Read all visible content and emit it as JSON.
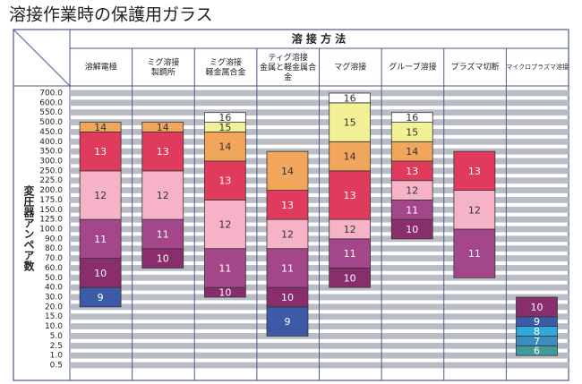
{
  "chart_data": {
    "type": "stacked-range",
    "title": "溶接作業時の保護用ガラス",
    "group_header": "溶 接 方 法",
    "ylabel": "変圧器アンペア数",
    "yticks": [
      {
        "value": 700,
        "label": "700.0"
      },
      {
        "value": 600,
        "label": "600.0"
      },
      {
        "value": 550,
        "label": "550.0"
      },
      {
        "value": 500,
        "label": "500.0"
      },
      {
        "value": 450,
        "label": "450.0"
      },
      {
        "value": 400,
        "label": "400.0"
      },
      {
        "value": 350,
        "label": "350.0"
      },
      {
        "value": 300,
        "label": "300.0"
      },
      {
        "value": 250,
        "label": "250.0"
      },
      {
        "value": 225,
        "label": "225.0"
      },
      {
        "value": 200,
        "label": "200.0"
      },
      {
        "value": 175,
        "label": "175.0"
      },
      {
        "value": 150,
        "label": "150.0"
      },
      {
        "value": 125,
        "label": "125.0"
      },
      {
        "value": 100,
        "label": "100.0"
      },
      {
        "value": 90,
        "label": "90.0"
      },
      {
        "value": 80,
        "label": "80.0"
      },
      {
        "value": 70,
        "label": "70.0"
      },
      {
        "value": 60,
        "label": "60.0"
      },
      {
        "value": 50,
        "label": "50.0"
      },
      {
        "value": 40,
        "label": "40.0"
      },
      {
        "value": 30,
        "label": "30.0"
      },
      {
        "value": 20,
        "label": "20.0"
      },
      {
        "value": 15,
        "label": "15.0"
      },
      {
        "value": 10,
        "label": "10.0"
      },
      {
        "value": 5,
        "label": "5.0"
      },
      {
        "value": 2.5,
        "label": "2.5"
      },
      {
        "value": 1,
        "label": "1.0"
      },
      {
        "value": 0.5,
        "label": "0.5"
      }
    ],
    "grid": true,
    "categories": [
      "溶解電極",
      "ミグ溶接\n製鋼所",
      "ミグ溶接\n軽金属合金",
      "ティグ溶接\n金属と軽金属合\n金",
      "マグ溶接",
      "グルーブ溶接",
      "プラズマ切断",
      "マイクロプラズマ溶接"
    ],
    "columns": [
      {
        "segments": [
          {
            "shade": 9,
            "from": 20,
            "to": 40,
            "color": "#3d5aa6"
          },
          {
            "shade": 10,
            "from": 40,
            "to": 70,
            "color": "#8a2d6d"
          },
          {
            "shade": 11,
            "from": 70,
            "to": 125,
            "color": "#a3478a"
          },
          {
            "shade": 12,
            "from": 125,
            "to": 250,
            "color": "#f6b3c8"
          },
          {
            "shade": 13,
            "from": 250,
            "to": 450,
            "color": "#e03a5c"
          },
          {
            "shade": 14,
            "from": 450,
            "to": 500,
            "color": "#f2a65c"
          }
        ]
      },
      {
        "segments": [
          {
            "shade": 10,
            "from": 60,
            "to": 80,
            "color": "#8a2d6d"
          },
          {
            "shade": 11,
            "from": 80,
            "to": 125,
            "color": "#a3478a"
          },
          {
            "shade": 12,
            "from": 125,
            "to": 250,
            "color": "#f6b3c8"
          },
          {
            "shade": 13,
            "from": 250,
            "to": 450,
            "color": "#e03a5c"
          },
          {
            "shade": 14,
            "from": 450,
            "to": 500,
            "color": "#f2a65c"
          }
        ]
      },
      {
        "segments": [
          {
            "shade": 10,
            "from": 30,
            "to": 40,
            "color": "#8a2d6d"
          },
          {
            "shade": 11,
            "from": 40,
            "to": 80,
            "color": "#a3478a"
          },
          {
            "shade": 12,
            "from": 80,
            "to": 175,
            "color": "#f6b3c8"
          },
          {
            "shade": 13,
            "from": 175,
            "to": 300,
            "color": "#e03a5c"
          },
          {
            "shade": 14,
            "from": 300,
            "to": 450,
            "color": "#f2a65c"
          },
          {
            "shade": 15,
            "from": 450,
            "to": 500,
            "color": "#f3f196"
          },
          {
            "shade": 16,
            "from": 500,
            "to": 550,
            "color": "#ffffff"
          }
        ]
      },
      {
        "segments": [
          {
            "shade": 9,
            "from": 5,
            "to": 20,
            "color": "#3d5aa6"
          },
          {
            "shade": 10,
            "from": 20,
            "to": 40,
            "color": "#8a2d6d"
          },
          {
            "shade": 11,
            "from": 40,
            "to": 80,
            "color": "#a3478a"
          },
          {
            "shade": 12,
            "from": 80,
            "to": 125,
            "color": "#f6b3c8"
          },
          {
            "shade": 13,
            "from": 125,
            "to": 200,
            "color": "#e03a5c"
          },
          {
            "shade": 14,
            "from": 200,
            "to": 350,
            "color": "#f2a65c"
          }
        ]
      },
      {
        "segments": [
          {
            "shade": 10,
            "from": 40,
            "to": 60,
            "color": "#8a2d6d"
          },
          {
            "shade": 11,
            "from": 60,
            "to": 90,
            "color": "#a3478a"
          },
          {
            "shade": 12,
            "from": 90,
            "to": 125,
            "color": "#f6b3c8"
          },
          {
            "shade": 13,
            "from": 125,
            "to": 250,
            "color": "#e03a5c"
          },
          {
            "shade": 14,
            "from": 250,
            "to": 400,
            "color": "#f2a65c"
          },
          {
            "shade": 15,
            "from": 400,
            "to": 600,
            "color": "#f3f196"
          },
          {
            "shade": 16,
            "from": 600,
            "to": 700,
            "color": "#ffffff"
          }
        ]
      },
      {
        "segments": [
          {
            "shade": 10,
            "from": 90,
            "to": 125,
            "color": "#8a2d6d"
          },
          {
            "shade": 11,
            "from": 125,
            "to": 175,
            "color": "#a3478a"
          },
          {
            "shade": 12,
            "from": 175,
            "to": 225,
            "color": "#f6b3c8"
          },
          {
            "shade": 13,
            "from": 225,
            "to": 300,
            "color": "#e03a5c"
          },
          {
            "shade": 14,
            "from": 300,
            "to": 400,
            "color": "#f2a65c"
          },
          {
            "shade": 15,
            "from": 400,
            "to": 500,
            "color": "#f3f196"
          },
          {
            "shade": 16,
            "from": 500,
            "to": 550,
            "color": "#ffffff"
          }
        ]
      },
      {
        "segments": [
          {
            "shade": 11,
            "from": 50,
            "to": 100,
            "color": "#a3478a"
          },
          {
            "shade": 12,
            "from": 100,
            "to": 200,
            "color": "#f6b3c8"
          },
          {
            "shade": 13,
            "from": 200,
            "to": 350,
            "color": "#e03a5c"
          }
        ]
      },
      {
        "segments": [
          {
            "shade": 6,
            "from": 1,
            "to": 2.5,
            "color": "#3f9c9a"
          },
          {
            "shade": 7,
            "from": 2.5,
            "to": 5,
            "color": "#3a8ec4"
          },
          {
            "shade": 8,
            "from": 5,
            "to": 10,
            "color": "#2fa9dc"
          },
          {
            "shade": 9,
            "from": 10,
            "to": 15,
            "color": "#3d5aa6"
          },
          {
            "shade": 10,
            "from": 15,
            "to": 30,
            "color": "#8a2d6d"
          }
        ]
      }
    ]
  }
}
